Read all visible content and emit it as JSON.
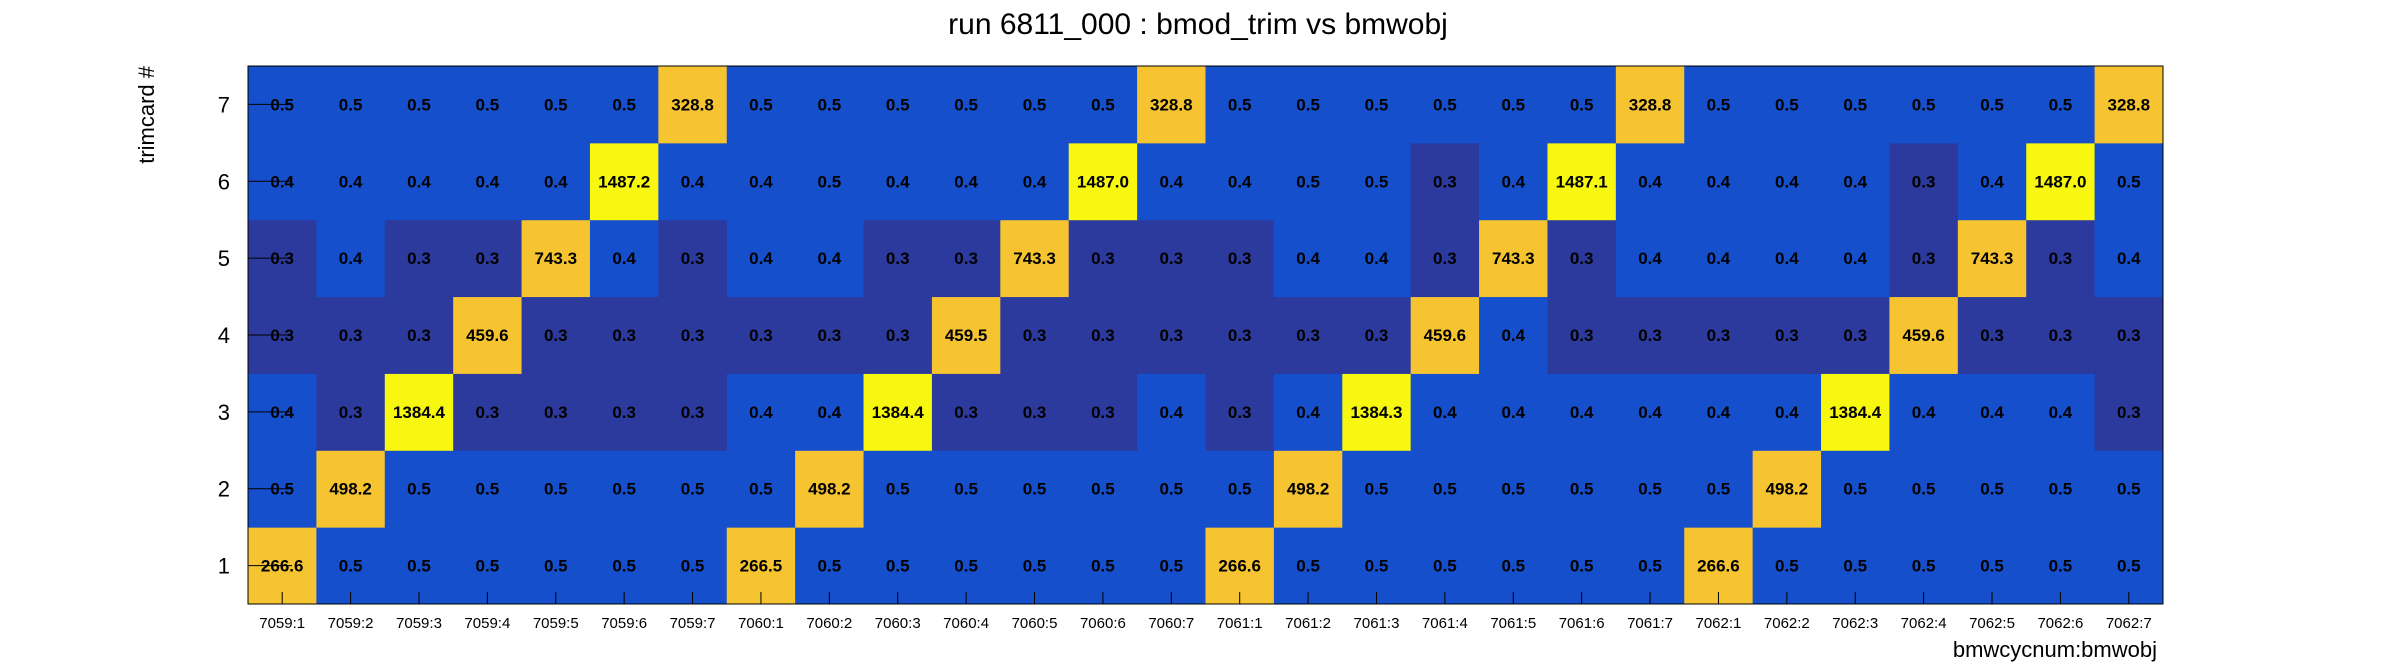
{
  "chart_data": {
    "type": "heatmap",
    "title": "run 6811_000 : bmod_trim vs bmwobj",
    "xlabel": "bmwcycnum:bmwobj",
    "ylabel": "trimcard #",
    "x_categories": [
      "7059:1",
      "7059:2",
      "7059:3",
      "7059:4",
      "7059:5",
      "7059:6",
      "7059:7",
      "7060:1",
      "7060:2",
      "7060:3",
      "7060:4",
      "7060:5",
      "7060:6",
      "7060:7",
      "7061:1",
      "7061:2",
      "7061:3",
      "7061:4",
      "7061:5",
      "7061:6",
      "7061:7",
      "7062:1",
      "7062:2",
      "7062:3",
      "7062:4",
      "7062:5",
      "7062:6",
      "7062:7"
    ],
    "y_categories": [
      "1",
      "2",
      "3",
      "4",
      "5",
      "6",
      "7"
    ],
    "values": [
      [
        266.6,
        0.5,
        0.5,
        0.5,
        0.5,
        0.5,
        0.5,
        266.5,
        0.5,
        0.5,
        0.5,
        0.5,
        0.5,
        0.5,
        266.6,
        0.5,
        0.5,
        0.5,
        0.5,
        0.5,
        0.5,
        266.6,
        0.5,
        0.5,
        0.5,
        0.5,
        0.5,
        0.5
      ],
      [
        0.5,
        498.2,
        0.5,
        0.5,
        0.5,
        0.5,
        0.5,
        0.5,
        498.2,
        0.5,
        0.5,
        0.5,
        0.5,
        0.5,
        0.5,
        498.2,
        0.5,
        0.5,
        0.5,
        0.5,
        0.5,
        0.5,
        498.2,
        0.5,
        0.5,
        0.5,
        0.5,
        0.5
      ],
      [
        0.4,
        0.3,
        1384.4,
        0.3,
        0.3,
        0.3,
        0.3,
        0.4,
        0.4,
        1384.4,
        0.3,
        0.3,
        0.3,
        0.4,
        0.3,
        0.4,
        1384.3,
        0.4,
        0.4,
        0.4,
        0.4,
        0.4,
        0.4,
        1384.4,
        0.4,
        0.4,
        0.4,
        0.3
      ],
      [
        0.3,
        0.3,
        0.3,
        459.6,
        0.3,
        0.3,
        0.3,
        0.3,
        0.3,
        0.3,
        459.5,
        0.3,
        0.3,
        0.3,
        0.3,
        0.3,
        0.3,
        459.6,
        0.4,
        0.3,
        0.3,
        0.3,
        0.3,
        0.3,
        459.6,
        0.3,
        0.3,
        0.3
      ],
      [
        0.3,
        0.4,
        0.3,
        0.3,
        743.3,
        0.4,
        0.3,
        0.4,
        0.4,
        0.3,
        0.3,
        743.3,
        0.3,
        0.3,
        0.3,
        0.4,
        0.4,
        0.3,
        743.3,
        0.3,
        0.4,
        0.4,
        0.4,
        0.4,
        0.3,
        743.3,
        0.3,
        0.4
      ],
      [
        0.4,
        0.4,
        0.4,
        0.4,
        0.4,
        1487.2,
        0.4,
        0.4,
        0.5,
        0.4,
        0.4,
        0.4,
        1487.0,
        0.4,
        0.4,
        0.5,
        0.5,
        0.3,
        0.4,
        1487.1,
        0.4,
        0.4,
        0.4,
        0.4,
        0.3,
        0.4,
        1487.0,
        0.5
      ],
      [
        0.5,
        0.5,
        0.5,
        0.5,
        0.5,
        0.5,
        328.8,
        0.5,
        0.5,
        0.5,
        0.5,
        0.5,
        0.5,
        328.8,
        0.5,
        0.5,
        0.5,
        0.5,
        0.5,
        0.5,
        328.8,
        0.5,
        0.5,
        0.5,
        0.5,
        0.5,
        0.5,
        328.8
      ]
    ],
    "grid": false,
    "legend": "none",
    "colors": {
      "low_dark": "#2b3a9c",
      "low": "#164fcb",
      "mid": "#f7c431",
      "high": "#f7f70f",
      "text": "#000000"
    }
  }
}
